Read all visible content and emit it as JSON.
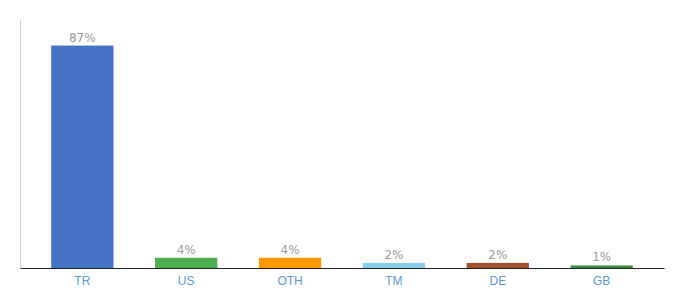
{
  "chart_data": {
    "type": "bar",
    "categories": [
      "TR",
      "US",
      "OTH",
      "TM",
      "DE",
      "GB"
    ],
    "values": [
      87,
      4,
      4,
      2,
      2,
      1
    ],
    "value_labels": [
      "87%",
      "4%",
      "4%",
      "2%",
      "2%",
      "1%"
    ],
    "colors": [
      "#4472C4",
      "#4CAF50",
      "#FF9800",
      "#87CEEB",
      "#A0522D",
      "#388E3C"
    ],
    "ylim": [
      0,
      97
    ],
    "data_labels": true,
    "tick_labels": "x",
    "grid": false
  }
}
